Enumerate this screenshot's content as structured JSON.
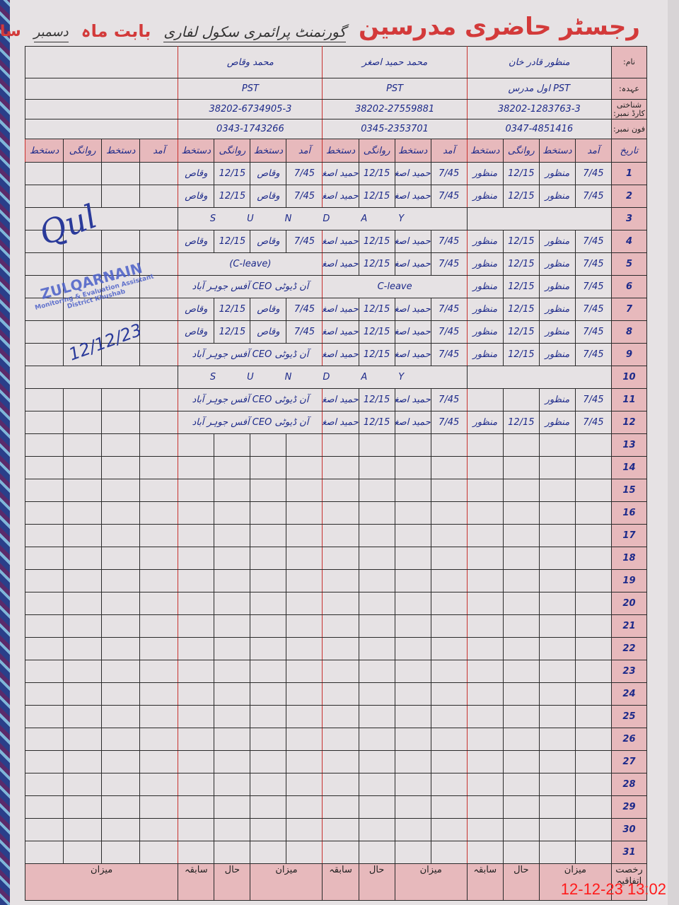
{
  "header": {
    "title": "رجسٹر حاضری مدرسین",
    "school": "گورنمنٹ پرائمری سکول لفاری",
    "month_label": "بابت ماہ",
    "month": "دسمبر",
    "year_label": "سال"
  },
  "labels": {
    "name": "نام:",
    "designation": "عہدہ:",
    "cnic": "شناختی کارڈ نمبر:",
    "phone": "فون نمبر:",
    "date": "تاریخ"
  },
  "columns": [
    "آمد",
    "دستخط",
    "روانگی",
    "دستخط"
  ],
  "teachers": [
    {
      "name": "منظور قادر خان",
      "designation": "PST اول مدرس",
      "cnic": "38202-1283763-3",
      "phone": "0347-4851416",
      "sign": "منظور"
    },
    {
      "name": "محمد حمید اصغر",
      "designation": "PST",
      "cnic": "38202-27559881",
      "phone": "0345-2353701",
      "sign": "حمید اصغر"
    },
    {
      "name": "محمد وقاص",
      "designation": "PST",
      "cnic": "38202-6734905-3",
      "phone": "0343-1743266",
      "sign": "وقاص"
    }
  ],
  "sunday_text": "SUNDAY",
  "rows": [
    {
      "date": "1",
      "entries": [
        [
          "7/45",
          "منظور",
          "12/15",
          "منظور"
        ],
        [
          "7/45",
          "حمید اصغر",
          "12/15",
          "حمید اصغر"
        ],
        [
          "7/45",
          "وقاص",
          "12/15",
          "وقاص"
        ]
      ]
    },
    {
      "date": "2",
      "entries": [
        [
          "7/45",
          "منظور",
          "12/15",
          "منظور"
        ],
        [
          "7/45",
          "حمید اصغر",
          "12/15",
          "حمید اصغر"
        ],
        [
          "7/45",
          "وقاص",
          "12/15",
          "وقاص"
        ]
      ]
    },
    {
      "date": "3",
      "sunday": true
    },
    {
      "date": "4",
      "entries": [
        [
          "7/45",
          "منظور",
          "12/15",
          "منظور"
        ],
        [
          "7/45",
          "حمید اصغر",
          "12/15",
          "حمید اصغر"
        ],
        [
          "7/45",
          "وقاص",
          "12/15",
          "وقاص"
        ]
      ]
    },
    {
      "date": "5",
      "entries": [
        [
          "7/45",
          "منظور",
          "12/15",
          "منظور"
        ],
        [
          "7/45",
          "حمید اصغر",
          "12/15",
          "حمید اصغر"
        ],
        {
          "note": "(C-leave)"
        }
      ]
    },
    {
      "date": "6",
      "entries": [
        [
          "7/45",
          "منظور",
          "12/15",
          "منظور"
        ],
        {
          "note": "C-leave"
        },
        {
          "note": "آن ڈیوٹی CEO آفس جوہر آباد"
        }
      ]
    },
    {
      "date": "7",
      "entries": [
        [
          "7/45",
          "منظور",
          "12/15",
          "منظور"
        ],
        [
          "7/45",
          "حمید اصغر",
          "12/15",
          "حمید اصغر"
        ],
        [
          "7/45",
          "وقاص",
          "12/15",
          "وقاص"
        ]
      ]
    },
    {
      "date": "8",
      "entries": [
        [
          "7/45",
          "منظور",
          "12/15",
          "منظور"
        ],
        [
          "7/45",
          "حمید اصغر",
          "12/15",
          "حمید اصغر"
        ],
        [
          "7/45",
          "وقاص",
          "12/15",
          "وقاص"
        ]
      ]
    },
    {
      "date": "9",
      "entries": [
        [
          "7/45",
          "منظور",
          "12/15",
          "منظور"
        ],
        [
          "7/45",
          "حمید اصغر",
          "12/15",
          "حمید اصغر"
        ],
        {
          "note": "آن ڈیوٹی CEO آفس جوہر آباد"
        }
      ]
    },
    {
      "date": "10",
      "sunday": true
    },
    {
      "date": "11",
      "entries": [
        [
          "7/45",
          "منظور",
          "",
          ""
        ],
        [
          "7/45",
          "حمید اصغر",
          "12/15",
          "حمید اصغر"
        ],
        {
          "note": "آن ڈیوٹی CEO آفس جوہر آباد"
        }
      ]
    },
    {
      "date": "12",
      "entries": [
        [
          "7/45",
          "منظور",
          "12/15",
          "منظور"
        ],
        [
          "7/45",
          "حمید اصغر",
          "12/15",
          "حمید اصغر"
        ],
        {
          "note": "آن ڈیوٹی CEO آفس جوہر آباد"
        }
      ]
    },
    {
      "date": "13"
    },
    {
      "date": "14"
    },
    {
      "date": "15"
    },
    {
      "date": "16"
    },
    {
      "date": "17"
    },
    {
      "date": "18"
    },
    {
      "date": "19"
    },
    {
      "date": "20"
    },
    {
      "date": "21"
    },
    {
      "date": "22"
    },
    {
      "date": "23"
    },
    {
      "date": "24"
    },
    {
      "date": "25"
    },
    {
      "date": "26"
    },
    {
      "date": "27"
    },
    {
      "date": "28"
    },
    {
      "date": "29"
    },
    {
      "date": "30"
    },
    {
      "date": "31"
    }
  ],
  "footer": {
    "first": "رخصت اتفاقیہ",
    "totals": [
      "میزان",
      "حال",
      "سابقہ",
      "میزان",
      "حال",
      "سابقہ",
      "میزان",
      "حال",
      "سابقہ",
      "میزان"
    ]
  },
  "stamp": {
    "name": "ZULQARNAIN",
    "title": "Monitoring & Evaluation Assistant",
    "district": "District Khushab",
    "signature_date": "12/12/23"
  },
  "timestamp": "12-12-23 13:02",
  "colors": {
    "header_pink": "#e7b9bc",
    "title_red": "#d33a3a",
    "ink_blue": "#1d2a8a",
    "timestamp_red": "#ff1a1a"
  }
}
